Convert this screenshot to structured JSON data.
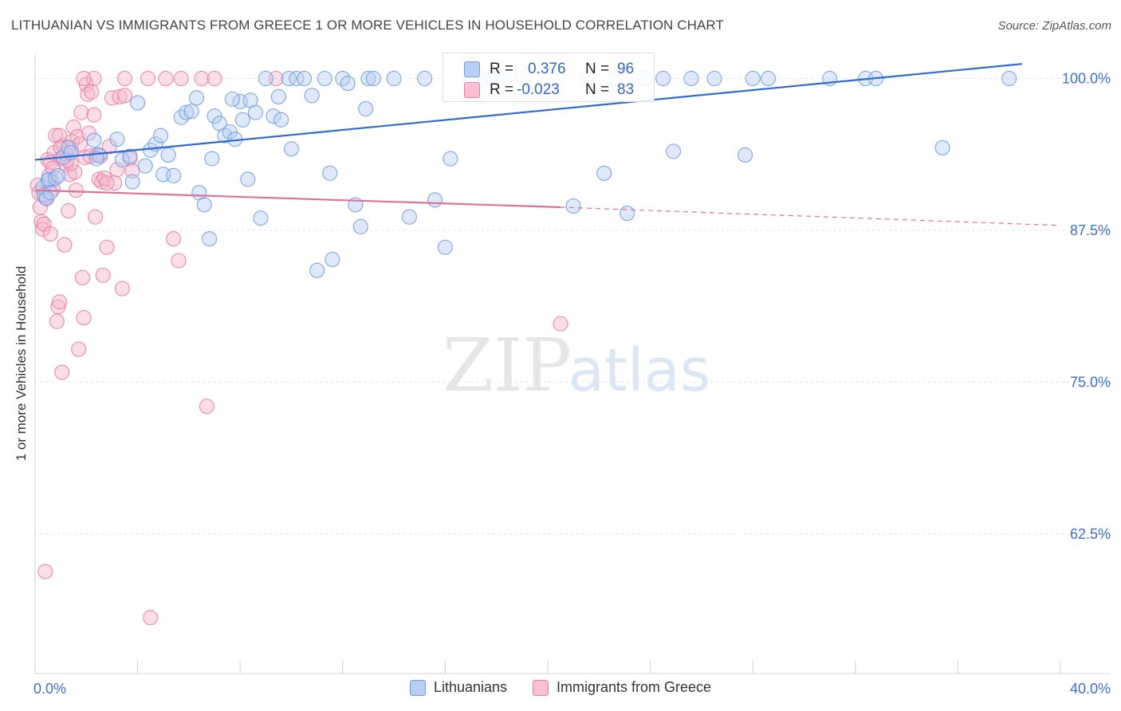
{
  "title": "LITHUANIAN VS IMMIGRANTS FROM GREECE 1 OR MORE VEHICLES IN HOUSEHOLD CORRELATION CHART",
  "source": "Source: ZipAtlas.com",
  "watermark": {
    "zip": "ZIP",
    "atlas": "atlas"
  },
  "stats": {
    "blue": {
      "r_label": "R =",
      "r_value": "0.376",
      "n_label": "N =",
      "n_value": "96"
    },
    "pink": {
      "r_label": "R =",
      "r_value": "-0.023",
      "n_label": "N =",
      "n_value": "83"
    }
  },
  "colors": {
    "blue": "#6f9ee3",
    "pink": "#e87fa3",
    "blue_line": "#2f6bd0",
    "pink_line": "#e0709a",
    "tick_label": "#3b6fcf"
  },
  "chart_data": {
    "type": "scatter",
    "xlabel": "",
    "ylabel": "1 or more Vehicles in Household",
    "xlim": [
      0,
      40
    ],
    "ylim": [
      51,
      102
    ],
    "x_tick_labels": [
      {
        "value": 0,
        "label": "0.0%"
      },
      {
        "value": 40,
        "label": "40.0%"
      }
    ],
    "y_tick_labels": [
      {
        "value": 100,
        "label": "100.0%"
      },
      {
        "value": 87.5,
        "label": "87.5%"
      },
      {
        "value": 75,
        "label": "75.0%"
      },
      {
        "value": 62.5,
        "label": "62.5%"
      }
    ],
    "legend": [
      "Lithuanians",
      "Immigrants from Greece"
    ],
    "series": [
      {
        "name": "Lithuanians",
        "color": "#6f9ee3",
        "trend": {
          "x": [
            0,
            38.5
          ],
          "y": [
            93.3,
            101.2
          ]
        },
        "points": [
          [
            0.3,
            91.0
          ],
          [
            0.35,
            90.4
          ],
          [
            0.45,
            90.1
          ],
          [
            0.5,
            91.6
          ],
          [
            0.55,
            91.7
          ],
          [
            0.6,
            90.6
          ],
          [
            0.8,
            91.8
          ],
          [
            0.9,
            92.0
          ],
          [
            1.1,
            93.5
          ],
          [
            1.3,
            94.3
          ],
          [
            1.4,
            93.9
          ],
          [
            2.3,
            94.9
          ],
          [
            2.5,
            93.7
          ],
          [
            2.4,
            93.4
          ],
          [
            3.2,
            95.0
          ],
          [
            3.4,
            93.3
          ],
          [
            3.8,
            91.5
          ],
          [
            3.7,
            93.6
          ],
          [
            4.0,
            98.0
          ],
          [
            4.3,
            92.8
          ],
          [
            4.5,
            94.1
          ],
          [
            4.7,
            94.6
          ],
          [
            4.9,
            95.3
          ],
          [
            5.0,
            92.1
          ],
          [
            5.2,
            93.7
          ],
          [
            5.4,
            92.0
          ],
          [
            5.7,
            96.8
          ],
          [
            5.9,
            97.2
          ],
          [
            6.1,
            97.3
          ],
          [
            6.3,
            98.4
          ],
          [
            6.4,
            90.6
          ],
          [
            6.6,
            89.6
          ],
          [
            6.8,
            86.8
          ],
          [
            6.9,
            93.4
          ],
          [
            7.0,
            96.9
          ],
          [
            7.2,
            96.3
          ],
          [
            7.4,
            95.3
          ],
          [
            7.6,
            95.6
          ],
          [
            7.8,
            95.0
          ],
          [
            8.0,
            98.1
          ],
          [
            8.1,
            96.6
          ],
          [
            8.3,
            91.7
          ],
          [
            8.4,
            98.2
          ],
          [
            8.6,
            97.2
          ],
          [
            8.8,
            88.5
          ],
          [
            9.0,
            100.0
          ],
          [
            9.3,
            96.9
          ],
          [
            9.5,
            98.5
          ],
          [
            9.6,
            96.6
          ],
          [
            9.9,
            100.0
          ],
          [
            10.0,
            94.2
          ],
          [
            10.2,
            100.0
          ],
          [
            10.5,
            100.0
          ],
          [
            10.8,
            98.6
          ],
          [
            11.0,
            84.2
          ],
          [
            11.3,
            100.0
          ],
          [
            11.5,
            92.2
          ],
          [
            11.6,
            85.1
          ],
          [
            12.0,
            100.0
          ],
          [
            12.2,
            99.6
          ],
          [
            12.5,
            89.6
          ],
          [
            12.7,
            87.8
          ],
          [
            12.9,
            97.5
          ],
          [
            13.0,
            100.0
          ],
          [
            13.2,
            100.0
          ],
          [
            14.0,
            100.0
          ],
          [
            14.6,
            88.6
          ],
          [
            15.2,
            100.0
          ],
          [
            15.6,
            90.0
          ],
          [
            16.0,
            86.1
          ],
          [
            16.2,
            93.4
          ],
          [
            17.4,
            100.0
          ],
          [
            17.8,
            100.0
          ],
          [
            19.0,
            100.0
          ],
          [
            20.4,
            100.0
          ],
          [
            21.0,
            89.5
          ],
          [
            21.5,
            100.0
          ],
          [
            22.2,
            92.2
          ],
          [
            22.6,
            100.0
          ],
          [
            23.1,
            88.9
          ],
          [
            23.8,
            100.0
          ],
          [
            24.5,
            100.0
          ],
          [
            24.9,
            94.0
          ],
          [
            25.6,
            100.0
          ],
          [
            26.5,
            100.0
          ],
          [
            27.7,
            93.7
          ],
          [
            28.0,
            100.0
          ],
          [
            28.6,
            100.0
          ],
          [
            31.0,
            100.0
          ],
          [
            32.4,
            100.0
          ],
          [
            32.8,
            100.0
          ],
          [
            35.4,
            94.3
          ],
          [
            38.0,
            100.0
          ],
          [
            17.0,
            100.0
          ],
          [
            18.3,
            100.0
          ],
          [
            7.7,
            98.3
          ]
        ]
      },
      {
        "name": "Immigrants from Greece",
        "color": "#e87fa3",
        "trend": {
          "x": [
            0,
            20.5
          ],
          "y": [
            90.8,
            89.4
          ]
        },
        "trend_dashed": {
          "x": [
            20.5,
            40
          ],
          "y": [
            89.4,
            87.9
          ]
        },
        "points": [
          [
            0.1,
            91.2
          ],
          [
            0.15,
            90.6
          ],
          [
            0.2,
            89.4
          ],
          [
            0.25,
            88.2
          ],
          [
            0.3,
            87.6
          ],
          [
            0.35,
            88.0
          ],
          [
            0.4,
            59.4
          ],
          [
            0.45,
            90.2
          ],
          [
            0.5,
            93.3
          ],
          [
            0.55,
            92.0
          ],
          [
            0.6,
            87.2
          ],
          [
            0.65,
            91.6
          ],
          [
            0.7,
            90.9
          ],
          [
            0.75,
            93.9
          ],
          [
            0.8,
            95.3
          ],
          [
            0.85,
            80.0
          ],
          [
            0.9,
            81.2
          ],
          [
            0.95,
            81.6
          ],
          [
            1.0,
            93.4
          ],
          [
            1.05,
            75.8
          ],
          [
            1.1,
            94.5
          ],
          [
            1.15,
            86.3
          ],
          [
            1.2,
            92.9
          ],
          [
            1.25,
            93.3
          ],
          [
            1.3,
            89.1
          ],
          [
            1.35,
            92.1
          ],
          [
            1.4,
            94.2
          ],
          [
            1.45,
            94.8
          ],
          [
            1.5,
            96.0
          ],
          [
            1.55,
            92.3
          ],
          [
            1.6,
            90.8
          ],
          [
            1.65,
            95.2
          ],
          [
            1.7,
            77.7
          ],
          [
            1.75,
            94.6
          ],
          [
            1.8,
            97.2
          ],
          [
            1.85,
            83.6
          ],
          [
            1.9,
            80.3
          ],
          [
            1.95,
            93.5
          ],
          [
            2.0,
            99.5
          ],
          [
            2.05,
            98.7
          ],
          [
            2.1,
            95.5
          ],
          [
            2.15,
            93.6
          ],
          [
            2.2,
            98.9
          ],
          [
            2.3,
            97.0
          ],
          [
            2.35,
            88.6
          ],
          [
            2.4,
            93.7
          ],
          [
            2.5,
            91.7
          ],
          [
            2.6,
            91.5
          ],
          [
            2.65,
            83.8
          ],
          [
            2.7,
            91.8
          ],
          [
            2.8,
            86.1
          ],
          [
            2.9,
            94.4
          ],
          [
            3.0,
            98.4
          ],
          [
            3.1,
            91.4
          ],
          [
            3.2,
            92.5
          ],
          [
            3.3,
            98.5
          ],
          [
            3.4,
            82.7
          ],
          [
            3.5,
            98.6
          ],
          [
            3.7,
            93.4
          ],
          [
            3.8,
            92.4
          ],
          [
            2.3,
            100.0
          ],
          [
            3.5,
            100.0
          ],
          [
            4.4,
            100.0
          ],
          [
            5.1,
            100.0
          ],
          [
            5.7,
            100.0
          ],
          [
            6.5,
            100.0
          ],
          [
            7.0,
            100.0
          ],
          [
            4.5,
            55.6
          ],
          [
            5.4,
            86.8
          ],
          [
            5.6,
            85.0
          ],
          [
            6.7,
            73.0
          ],
          [
            20.5,
            79.8
          ],
          [
            9.4,
            100.0
          ],
          [
            1.9,
            100.0
          ],
          [
            0.95,
            95.3
          ],
          [
            1.2,
            93.8
          ],
          [
            2.55,
            93.6
          ],
          [
            0.6,
            93.1
          ],
          [
            0.7,
            92.6
          ],
          [
            1.0,
            94.3
          ],
          [
            0.4,
            90.2
          ],
          [
            1.4,
            93.0
          ],
          [
            2.8,
            91.4
          ]
        ]
      }
    ]
  }
}
